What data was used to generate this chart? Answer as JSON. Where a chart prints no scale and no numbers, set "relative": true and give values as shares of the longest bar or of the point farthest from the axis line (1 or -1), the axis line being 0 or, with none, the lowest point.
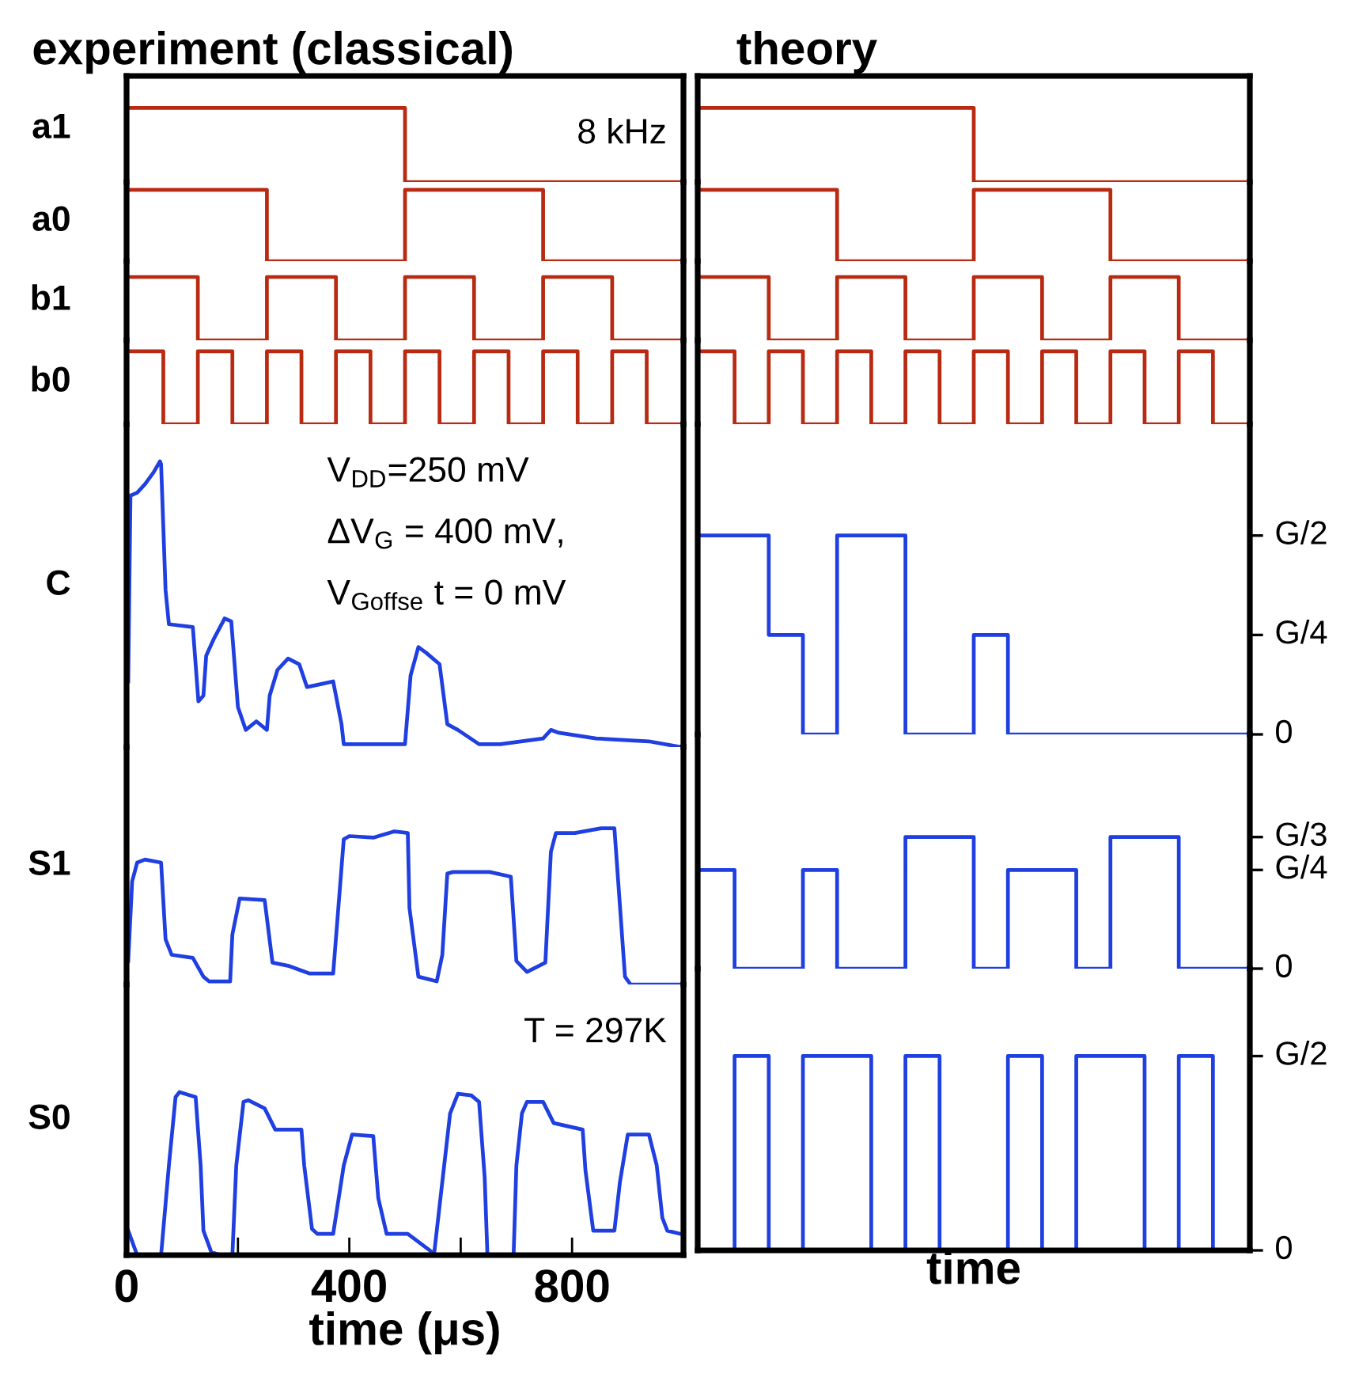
{
  "chart_data": [
    {
      "type": "step",
      "title": "experiment (classical)",
      "ylabel": "a1",
      "relative": true,
      "xlim": [
        0,
        1000
      ],
      "tick_labels": false,
      "annotations": [
        "8 kHz"
      ],
      "x": [
        4,
        66,
        128,
        190,
        252,
        314,
        376,
        438,
        500,
        562,
        624,
        686,
        748,
        810,
        872,
        934,
        996
      ],
      "series": [
        {
          "color": "#b82a12",
          "values": [
            1,
            1,
            1,
            1,
            1,
            1,
            1,
            1,
            0,
            0,
            0,
            0,
            0,
            0,
            0,
            0,
            0
          ]
        }
      ]
    },
    {
      "type": "step",
      "ylabel": "a0",
      "relative": true,
      "xlim": [
        0,
        1000
      ],
      "tick_labels": false,
      "x": [
        4,
        66,
        128,
        190,
        252,
        314,
        376,
        438,
        500,
        562,
        624,
        686,
        748,
        810,
        872,
        934,
        996
      ],
      "series": [
        {
          "color": "#b82a12",
          "values": [
            1,
            1,
            1,
            1,
            0,
            0,
            0,
            0,
            1,
            1,
            1,
            1,
            0,
            0,
            0,
            0,
            0
          ]
        }
      ]
    },
    {
      "type": "step",
      "ylabel": "b1",
      "relative": true,
      "xlim": [
        0,
        1000
      ],
      "tick_labels": false,
      "x": [
        4,
        66,
        128,
        190,
        252,
        314,
        376,
        438,
        500,
        562,
        624,
        686,
        748,
        810,
        872,
        934,
        996
      ],
      "series": [
        {
          "color": "#b82a12",
          "values": [
            1,
            1,
            0,
            0,
            1,
            1,
            0,
            0,
            1,
            1,
            0,
            0,
            1,
            1,
            0,
            0,
            0
          ]
        }
      ]
    },
    {
      "type": "step",
      "ylabel": "b0",
      "relative": true,
      "xlim": [
        0,
        1000
      ],
      "tick_labels": false,
      "x": [
        4,
        66,
        128,
        190,
        252,
        314,
        376,
        438,
        500,
        562,
        624,
        686,
        748,
        810,
        872,
        934,
        996
      ],
      "series": [
        {
          "color": "#b82a12",
          "values": [
            1,
            0,
            1,
            0,
            1,
            0,
            1,
            0,
            1,
            0,
            1,
            0,
            1,
            0,
            1,
            0,
            0
          ]
        }
      ]
    },
    {
      "type": "line",
      "ylabel": "C",
      "relative": true,
      "xlim": [
        0,
        1000
      ],
      "tick_labels": false,
      "annotations": [
        "V$_{DD}$=250 mV",
        "ΔV$_{G}$ = 400 mV,",
        "V$_{Goffse}$ t = 0 mV"
      ],
      "x": [
        3,
        7,
        19,
        33,
        48,
        60,
        62,
        70,
        76,
        119,
        129,
        138,
        143,
        157,
        176,
        188,
        200,
        214,
        233,
        252,
        257,
        271,
        290,
        310,
        324,
        348,
        371,
        386,
        390,
        500,
        510,
        524,
        538,
        562,
        576,
        595,
        633,
        671,
        748,
        762,
        776,
        843,
        938,
        995
      ],
      "series": [
        {
          "color": "#1f3fe0",
          "values": [
            0.23,
            0.88,
            0.89,
            0.92,
            0.96,
            1,
            0.99,
            0.55,
            0.43,
            0.42,
            0.16,
            0.18,
            0.32,
            0.38,
            0.45,
            0.44,
            0.14,
            0.06,
            0.09,
            0.06,
            0.18,
            0.27,
            0.31,
            0.29,
            0.21,
            0.22,
            0.23,
            0.08,
            0.01,
            0.01,
            0.25,
            0.35,
            0.33,
            0.29,
            0.08,
            0.06,
            0.01,
            0.01,
            0.03,
            0.06,
            0.05,
            0.03,
            0.02,
            0
          ]
        }
      ]
    },
    {
      "type": "line",
      "ylabel": "S1",
      "relative": true,
      "xlim": [
        0,
        1000
      ],
      "tick_labels": false,
      "x": [
        3,
        10,
        19,
        33,
        62,
        70,
        81,
        119,
        138,
        148,
        186,
        190,
        203,
        248,
        262,
        290,
        329,
        371,
        390,
        400,
        443,
        481,
        505,
        508,
        524,
        557,
        567,
        576,
        586,
        652,
        690,
        700,
        719,
        752,
        762,
        771,
        805,
        852,
        876,
        895,
        905,
        995
      ],
      "series": [
        {
          "color": "#1f3fe0",
          "values": [
            0.15,
            0.66,
            0.78,
            0.8,
            0.78,
            0.29,
            0.19,
            0.17,
            0.05,
            0.02,
            0.02,
            0.32,
            0.55,
            0.54,
            0.14,
            0.12,
            0.07,
            0.07,
            0.93,
            0.95,
            0.94,
            0.98,
            0.97,
            0.49,
            0.05,
            0.02,
            0.19,
            0.71,
            0.72,
            0.72,
            0.69,
            0.15,
            0.08,
            0.14,
            0.85,
            0.97,
            0.97,
            1,
            1,
            0.05,
            0,
            0
          ]
        }
      ]
    },
    {
      "type": "line",
      "ylabel": "S0",
      "xlabel": "time (μs)",
      "relative": true,
      "xlim": [
        0,
        1000
      ],
      "annotations": [
        "T = 297K"
      ],
      "xticks": [
        0,
        {
          "value": 200,
          "label": null
        },
        400,
        {
          "value": 600,
          "label": null
        },
        800
      ],
      "x": [
        3,
        19,
        62,
        76,
        88,
        95,
        124,
        133,
        138,
        152,
        167,
        190,
        197,
        210,
        219,
        248,
        267,
        314,
        319,
        333,
        343,
        371,
        390,
        405,
        443,
        452,
        467,
        505,
        548,
        552,
        568,
        581,
        595,
        619,
        633,
        643,
        648,
        695,
        700,
        710,
        719,
        748,
        767,
        819,
        824,
        838,
        876,
        886,
        900,
        938,
        952,
        962,
        971,
        995
      ],
      "series": [
        {
          "color": "#1f3fe0",
          "values": [
            0.15,
            0,
            0,
            0.55,
            0.97,
            1,
            0.97,
            0.55,
            0.15,
            0.02,
            0,
            0,
            0.55,
            0.94,
            0.95,
            0.9,
            0.77,
            0.77,
            0.55,
            0.16,
            0.13,
            0.13,
            0.55,
            0.74,
            0.73,
            0.35,
            0.13,
            0.13,
            0.02,
            0,
            0.48,
            0.87,
            0.99,
            0.98,
            0.94,
            0.48,
            0,
            0,
            0.55,
            0.87,
            0.94,
            0.94,
            0.81,
            0.77,
            0.52,
            0.15,
            0.15,
            0.45,
            0.74,
            0.74,
            0.55,
            0.23,
            0.15,
            0.13
          ]
        }
      ]
    },
    {
      "type": "step",
      "title": "theory",
      "relative": true,
      "categories": [
        null,
        null,
        null,
        null,
        null,
        null,
        null,
        null,
        null,
        null,
        null,
        null,
        null,
        null,
        null,
        null,
        null
      ],
      "series": [
        {
          "color": "#b82a12",
          "values": [
            1,
            1,
            1,
            1,
            1,
            1,
            1,
            1,
            0,
            0,
            0,
            0,
            0,
            0,
            0,
            0,
            0
          ]
        }
      ]
    },
    {
      "type": "step",
      "relative": true,
      "categories": [
        null,
        null,
        null,
        null,
        null,
        null,
        null,
        null,
        null,
        null,
        null,
        null,
        null,
        null,
        null,
        null,
        null
      ],
      "series": [
        {
          "color": "#b82a12",
          "values": [
            1,
            1,
            1,
            1,
            0,
            0,
            0,
            0,
            1,
            1,
            1,
            1,
            0,
            0,
            0,
            0,
            0
          ]
        }
      ]
    },
    {
      "type": "step",
      "relative": true,
      "categories": [
        null,
        null,
        null,
        null,
        null,
        null,
        null,
        null,
        null,
        null,
        null,
        null,
        null,
        null,
        null,
        null,
        null
      ],
      "series": [
        {
          "color": "#b82a12",
          "values": [
            1,
            1,
            0,
            0,
            1,
            1,
            0,
            0,
            1,
            1,
            0,
            0,
            1,
            1,
            0,
            0,
            0
          ]
        }
      ]
    },
    {
      "type": "step",
      "relative": true,
      "categories": [
        null,
        null,
        null,
        null,
        null,
        null,
        null,
        null,
        null,
        null,
        null,
        null,
        null,
        null,
        null,
        null,
        null
      ],
      "series": [
        {
          "color": "#b82a12",
          "values": [
            1,
            0,
            1,
            0,
            1,
            0,
            1,
            0,
            1,
            0,
            1,
            0,
            1,
            0,
            1,
            0,
            0
          ]
        }
      ]
    },
    {
      "type": "step",
      "relative": true,
      "annotations": [
        "G/2",
        "G/4",
        "0"
      ],
      "categories": [
        null,
        null,
        null,
        null,
        null,
        null,
        null,
        null,
        null,
        null,
        null,
        null,
        null,
        null,
        null,
        null,
        null
      ],
      "series": [
        {
          "color": "#1f3fe0",
          "values": [
            1,
            1,
            0.5,
            0,
            1,
            1,
            0,
            0,
            0.5,
            0,
            0,
            0,
            0,
            0,
            0,
            0,
            0
          ]
        }
      ]
    },
    {
      "type": "step",
      "relative": true,
      "annotations": [
        "G/3",
        "G/4",
        "0"
      ],
      "categories": [
        null,
        null,
        null,
        null,
        null,
        null,
        null,
        null,
        null,
        null,
        null,
        null,
        null,
        null,
        null,
        null,
        null
      ],
      "series": [
        {
          "color": "#1f3fe0",
          "values": [
            0.75,
            0,
            0,
            0.75,
            0,
            0,
            1,
            1,
            0,
            0.75,
            0.75,
            0,
            1,
            1,
            0,
            0,
            0
          ]
        }
      ]
    },
    {
      "type": "step",
      "xlabel": "time",
      "relative": true,
      "annotations": [
        "G/2",
        "0"
      ],
      "categories": [
        null,
        null,
        null,
        null,
        null,
        null,
        null,
        null,
        null,
        null,
        null,
        null,
        null,
        null,
        null,
        null,
        null
      ],
      "series": [
        {
          "color": "#1f3fe0",
          "values": [
            0,
            1,
            0,
            1,
            1,
            0,
            1,
            0,
            0,
            1,
            0,
            1,
            1,
            0,
            1,
            0,
            0
          ]
        }
      ]
    }
  ]
}
